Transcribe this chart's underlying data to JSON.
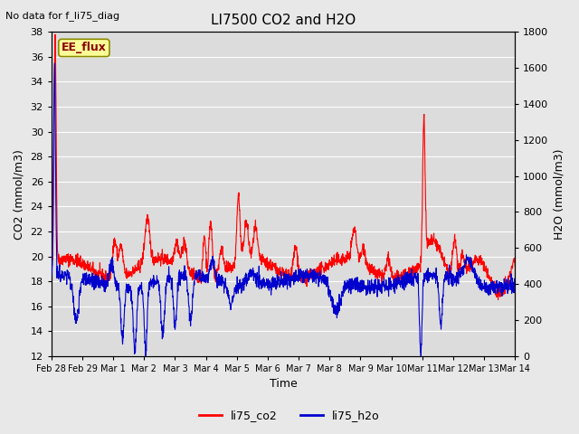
{
  "title": "LI7500 CO2 and H2O",
  "top_left_text": "No data for f_li75_diag",
  "annotation_text": "EE_flux",
  "annotation_color": "#8B0000",
  "annotation_bg": "#FFFF99",
  "annotation_edge": "#8B8B00",
  "xlabel": "Time",
  "ylabel_left": "CO2 (mmol/m3)",
  "ylabel_right": "H2O (mmol/m3)",
  "co2_color": "#FF0000",
  "h2o_color": "#0000CD",
  "ylim_left": [
    12,
    38
  ],
  "ylim_right": [
    0,
    1800
  ],
  "yticks_left": [
    12,
    14,
    16,
    18,
    20,
    22,
    24,
    26,
    28,
    30,
    32,
    34,
    36,
    38
  ],
  "yticks_right": [
    0,
    200,
    400,
    600,
    800,
    1000,
    1200,
    1400,
    1600,
    1800
  ],
  "bg_color": "#E8E8E8",
  "plot_bg": "#DCDCDC",
  "grid_color": "#FFFFFF",
  "legend_co2": "li75_co2",
  "legend_h2o": "li75_h2o",
  "line_width": 0.8,
  "n_points": 2000,
  "seed": 42,
  "x_tick_labels": [
    "Feb 28",
    "Feb 29",
    "Mar 1",
    "Mar 2",
    "Mar 3",
    "Mar 4",
    "Mar 5",
    "Mar 6",
    "Mar 7",
    "Mar 8",
    "Mar 9",
    "Mar 10",
    "Mar 11",
    "Mar 12",
    "Mar 13",
    "Mar 14"
  ]
}
